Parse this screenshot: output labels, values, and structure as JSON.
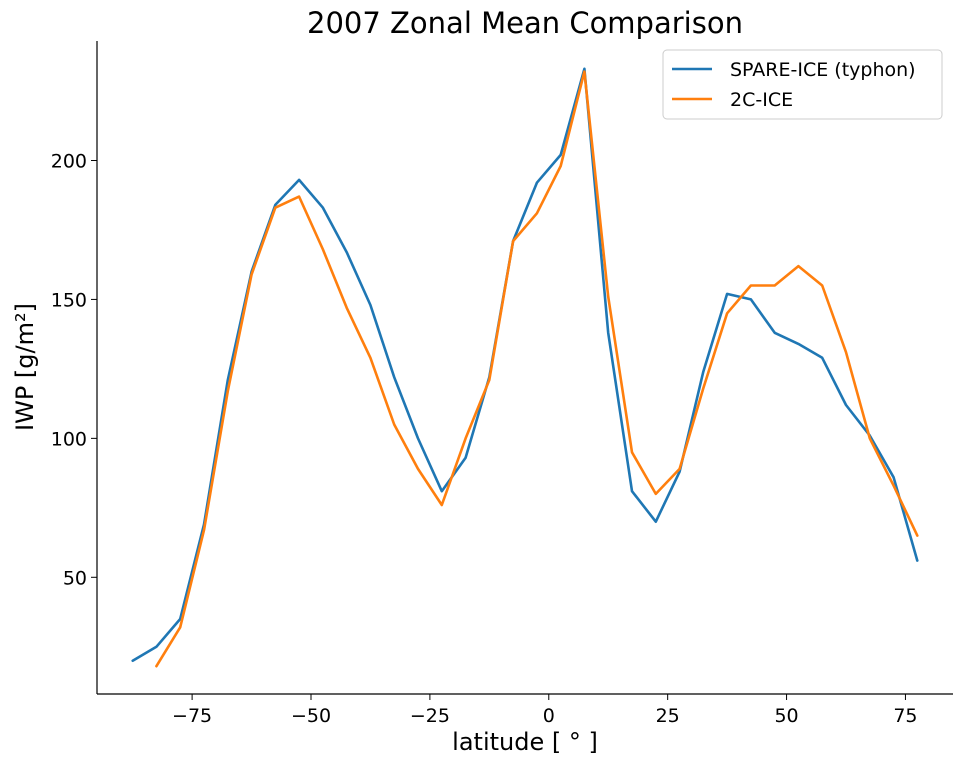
{
  "chart_data": {
    "type": "line",
    "title": "2007 Zonal Mean Comparison",
    "xlabel": "latitude [ ° ]",
    "ylabel": "IWP [g/m²]",
    "xlim": [
      -95,
      85
    ],
    "ylim": [
      8,
      243
    ],
    "xticks": [
      -75,
      -50,
      -25,
      0,
      25,
      50,
      75
    ],
    "yticks": [
      50,
      100,
      150,
      200
    ],
    "grid": false,
    "legend_position": "top-right",
    "series": [
      {
        "name": "SPARE-ICE (typhon)",
        "color": "#1f77b4",
        "x": [
          -87.5,
          -82.5,
          -77.5,
          -72.5,
          -67.5,
          -62.5,
          -57.5,
          -52.5,
          -47.5,
          -42.5,
          -37.5,
          -32.5,
          -27.5,
          -22.5,
          -17.5,
          -12.5,
          -7.5,
          -2.5,
          2.5,
          7.5,
          12.5,
          17.5,
          22.5,
          27.5,
          32.5,
          37.5,
          42.5,
          47.5,
          52.5,
          57.5,
          62.5,
          67.5,
          72.5,
          77.5
        ],
        "values": [
          20,
          25,
          35,
          69,
          121,
          160,
          184,
          193,
          183,
          167,
          148,
          122,
          100,
          81,
          93,
          122,
          171,
          192,
          202,
          233,
          138,
          81,
          70,
          88,
          124,
          152,
          150,
          138,
          134,
          129,
          112,
          101,
          86,
          56
        ]
      },
      {
        "name": "2C-ICE",
        "color": "#ff7f0e",
        "x": [
          -82.5,
          -77.5,
          -72.5,
          -67.5,
          -62.5,
          -57.5,
          -52.5,
          -47.5,
          -42.5,
          -37.5,
          -32.5,
          -27.5,
          -22.5,
          -17.5,
          -12.5,
          -7.5,
          -2.5,
          2.5,
          7.5,
          12.5,
          17.5,
          22.5,
          27.5,
          32.5,
          37.5,
          42.5,
          47.5,
          52.5,
          57.5,
          62.5,
          67.5,
          72.5,
          77.5
        ],
        "values": [
          18,
          32,
          67,
          117,
          159,
          183,
          187,
          168,
          147,
          129,
          105,
          89,
          76,
          100,
          121,
          171,
          181,
          198,
          232,
          151,
          95,
          80,
          89,
          118,
          145,
          155,
          155,
          162,
          155,
          131,
          100,
          83,
          65
        ]
      }
    ]
  }
}
